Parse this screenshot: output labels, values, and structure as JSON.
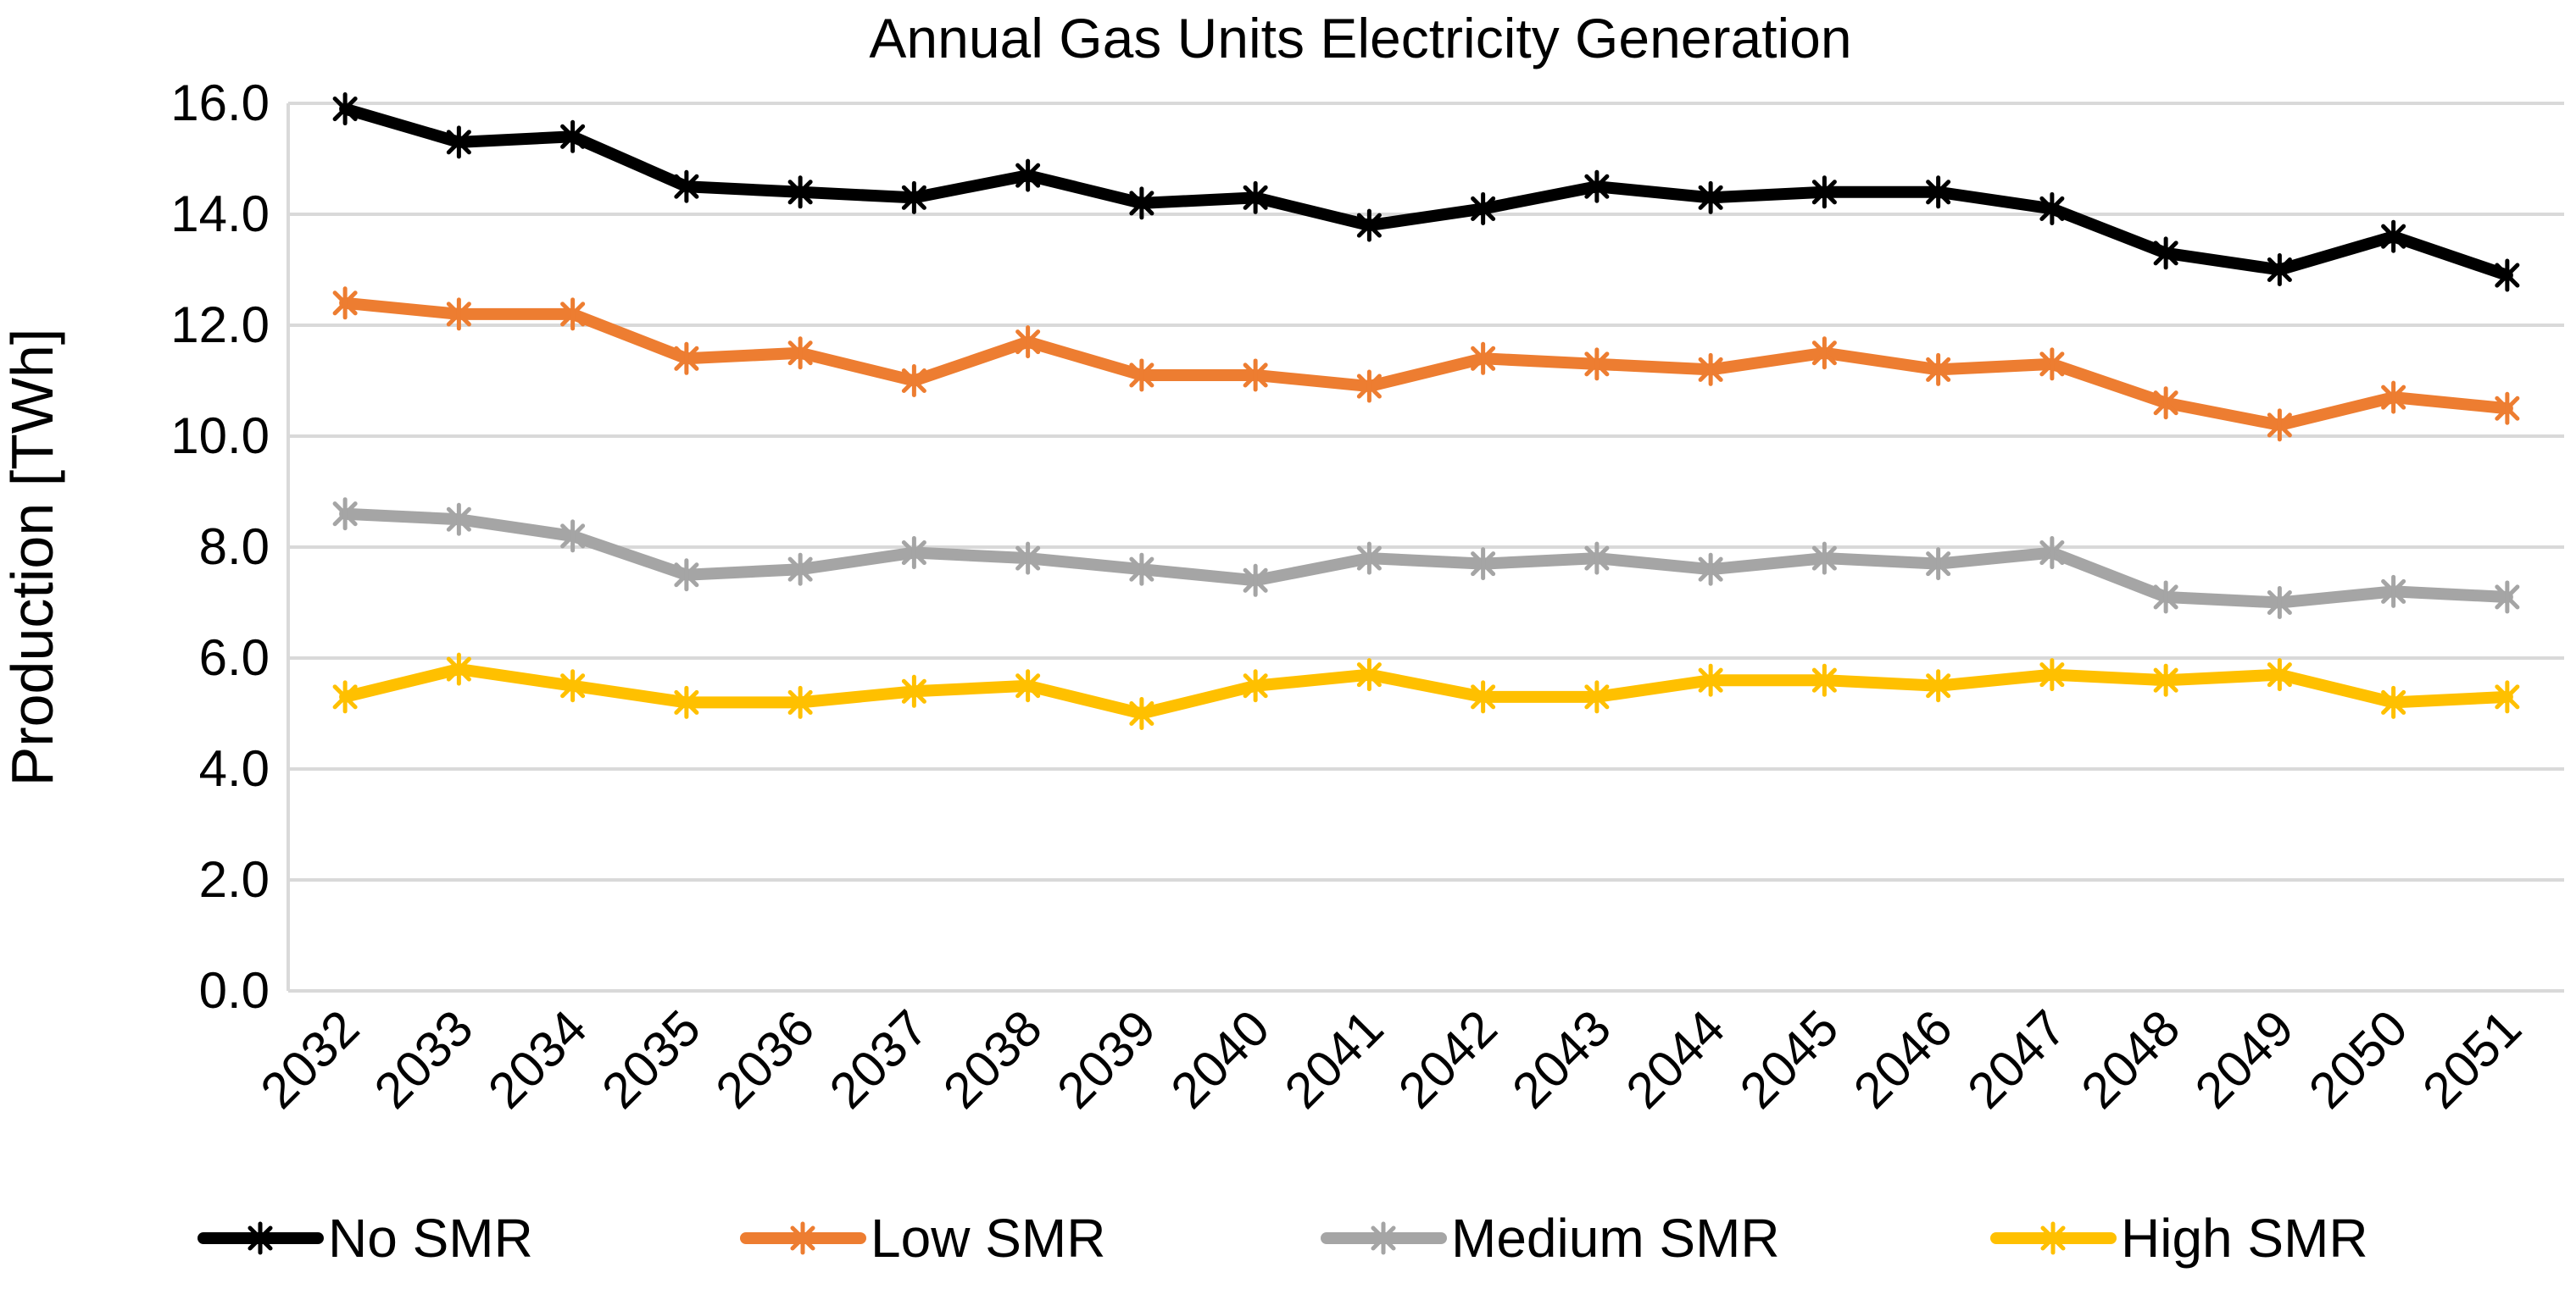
{
  "chart_data": {
    "type": "line",
    "title": "Annual Gas Units Electricity Generation",
    "xlabel": "",
    "ylabel": "Production [TWh]",
    "ylim": [
      0,
      16
    ],
    "yticks": [
      "0.0",
      "2.0",
      "4.0",
      "6.0",
      "8.0",
      "10.0",
      "12.0",
      "14.0",
      "16.0"
    ],
    "grid": true,
    "legend_position": "bottom",
    "categories": [
      "2032",
      "2033",
      "2034",
      "2035",
      "2036",
      "2037",
      "2038",
      "2039",
      "2040",
      "2041",
      "2042",
      "2043",
      "2044",
      "2045",
      "2046",
      "2047",
      "2048",
      "2049",
      "2050",
      "2051"
    ],
    "series": [
      {
        "name": "No SMR",
        "color": "#000000",
        "values": [
          15.9,
          15.3,
          15.4,
          14.5,
          14.4,
          14.3,
          14.7,
          14.2,
          14.3,
          13.8,
          14.1,
          14.5,
          14.3,
          14.4,
          14.4,
          14.1,
          13.3,
          13.0,
          13.6,
          12.9
        ]
      },
      {
        "name": "Low SMR",
        "color": "#ed7d31",
        "values": [
          12.4,
          12.2,
          12.2,
          11.4,
          11.5,
          11.0,
          11.7,
          11.1,
          11.1,
          10.9,
          11.4,
          11.3,
          11.2,
          11.5,
          11.2,
          11.3,
          10.6,
          10.2,
          10.7,
          10.5
        ]
      },
      {
        "name": "Medium SMR",
        "color": "#a5a5a5",
        "values": [
          8.6,
          8.5,
          8.2,
          7.5,
          7.6,
          7.9,
          7.8,
          7.6,
          7.4,
          7.8,
          7.7,
          7.8,
          7.6,
          7.8,
          7.7,
          7.9,
          7.1,
          7.0,
          7.2,
          7.1
        ]
      },
      {
        "name": "High SMR",
        "color": "#ffc000",
        "values": [
          5.3,
          5.8,
          5.5,
          5.2,
          5.2,
          5.4,
          5.5,
          5.0,
          5.5,
          5.7,
          5.3,
          5.3,
          5.6,
          5.6,
          5.5,
          5.7,
          5.6,
          5.7,
          5.2,
          5.3
        ]
      }
    ]
  }
}
